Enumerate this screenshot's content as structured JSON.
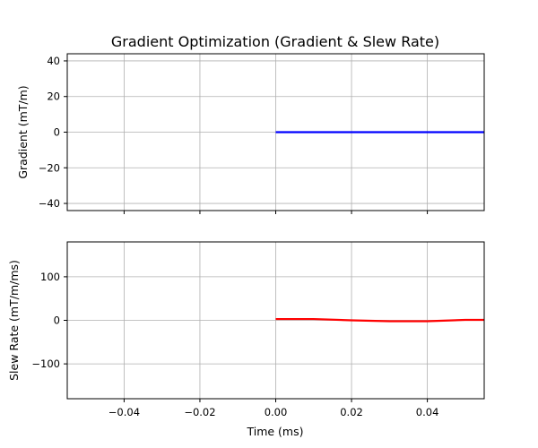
{
  "chart_data": {
    "title": "Gradient Optimization (Gradient & Slew Rate)",
    "shared_xlabel": "Time (ms)",
    "grid": true,
    "charts": [
      {
        "id": "gradient",
        "type": "line",
        "ylabel": "Gradient (mT/m)",
        "xlim": [
          -0.055,
          0.055
        ],
        "ylim": [
          -44,
          44
        ],
        "x_ticks": [
          -0.04,
          -0.02,
          0.0,
          0.02,
          0.04
        ],
        "x_tick_labels_visible": false,
        "y_ticks": [
          -40,
          -20,
          0,
          20,
          40
        ],
        "y_tick_labels": [
          "−40",
          "−20",
          "0",
          "20",
          "40"
        ],
        "series": [
          {
            "color": "#0000ff",
            "x": [
              0.0,
              0.01,
              0.02,
              0.03,
              0.04,
              0.05,
              0.055
            ],
            "y": [
              0,
              0,
              0,
              0,
              0,
              0,
              0
            ]
          }
        ]
      },
      {
        "id": "slew",
        "type": "line",
        "ylabel": "Slew Rate (mT/m/ms)",
        "xlim": [
          -0.055,
          0.055
        ],
        "ylim": [
          -180,
          180
        ],
        "x_ticks": [
          -0.04,
          -0.02,
          0.0,
          0.02,
          0.04
        ],
        "x_tick_labels": [
          "−0.04",
          "−0.02",
          "0.00",
          "0.02",
          "0.04"
        ],
        "x_tick_labels_visible": true,
        "y_ticks": [
          -100,
          0,
          100
        ],
        "y_tick_labels": [
          "−100",
          "0",
          "100"
        ],
        "series": [
          {
            "color": "#ff0000",
            "x": [
              0.0,
              0.01,
              0.02,
              0.03,
              0.04,
              0.05,
              0.055
            ],
            "y": [
              3,
              3,
              0,
              -2,
              -2,
              1,
              1
            ]
          }
        ]
      }
    ]
  }
}
